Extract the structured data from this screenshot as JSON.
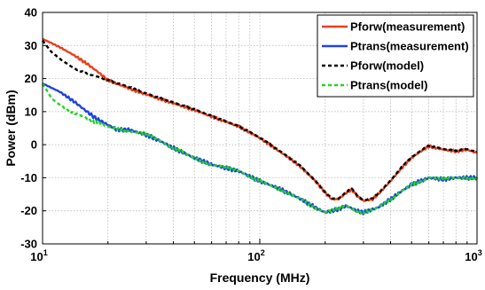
{
  "chart_data": {
    "type": "line",
    "xscale": "log",
    "xlim": [
      10,
      1000
    ],
    "ylim": [
      -30,
      40
    ],
    "grid": true,
    "legend_position": "top-right",
    "xlabel": "Frequency (MHz)",
    "ylabel": "Power (dBm)",
    "x_ticks": [
      {
        "value": 10,
        "base": "10",
        "exp": "1"
      },
      {
        "value": 100,
        "base": "10",
        "exp": "2"
      },
      {
        "value": 1000,
        "base": "10",
        "exp": "3"
      }
    ],
    "y_ticks": [
      -30,
      -20,
      -10,
      0,
      10,
      20,
      30,
      40
    ],
    "series": [
      {
        "name": "Pforw(measurement)",
        "color": "#e8401c",
        "dash": "solid",
        "noise": 0.4,
        "x": [
          10,
          12,
          14,
          16,
          18,
          20,
          25,
          30,
          40,
          50,
          60,
          80,
          100,
          120,
          150,
          180,
          200,
          215,
          230,
          250,
          265,
          280,
          300,
          330,
          350,
          400,
          450,
          500,
          550,
          600,
          650,
          700,
          800,
          900,
          1000
        ],
        "y": [
          32,
          29.5,
          27,
          24.5,
          22,
          19.5,
          17,
          15.2,
          12.5,
          10.5,
          8.5,
          5.5,
          2,
          -1.5,
          -6,
          -11,
          -14.5,
          -16.5,
          -16.5,
          -14.5,
          -13.5,
          -15.5,
          -17,
          -16.5,
          -15,
          -11,
          -7,
          -4,
          -2,
          -0.5,
          -1,
          -1.5,
          -2,
          -1.5,
          -2.5
        ]
      },
      {
        "name": "Ptrans(measurement)",
        "color": "#1f43e0",
        "dash": "solid",
        "noise": 0.6,
        "x": [
          10,
          12,
          14,
          16,
          18,
          20,
          22,
          25,
          30,
          35,
          40,
          50,
          60,
          80,
          100,
          120,
          150,
          180,
          200,
          230,
          250,
          280,
          300,
          350,
          400,
          450,
          500,
          550,
          600,
          700,
          800,
          1000
        ],
        "y": [
          18.5,
          16,
          13,
          10,
          7.5,
          6,
          4.5,
          4.5,
          3,
          1,
          -1,
          -4,
          -6,
          -8,
          -11,
          -13,
          -16,
          -19,
          -20.5,
          -19.5,
          -18.5,
          -20,
          -20.5,
          -19,
          -16.5,
          -14,
          -12,
          -11,
          -10,
          -10.5,
          -10,
          -10
        ]
      },
      {
        "name": "Pforw(model)",
        "color": "#000000",
        "dash": "4 3",
        "noise": 0.2,
        "x": [
          10,
          11,
          12,
          14,
          16,
          18,
          20,
          25,
          30,
          40,
          50,
          60,
          80,
          100,
          120,
          150,
          180,
          200,
          215,
          230,
          250,
          265,
          280,
          300,
          330,
          350,
          400,
          450,
          500,
          550,
          600,
          650,
          700,
          800,
          900,
          1000
        ],
        "y": [
          31.5,
          28,
          26,
          23,
          21.5,
          20.5,
          19.5,
          17.5,
          15.5,
          12.8,
          10.7,
          8.7,
          5.6,
          2.2,
          -1.3,
          -5.8,
          -10.8,
          -14.3,
          -16.3,
          -16.3,
          -14.3,
          -13.3,
          -15.3,
          -16.8,
          -16.3,
          -14.8,
          -10.8,
          -6.8,
          -3.8,
          -1.8,
          -0.3,
          -0.8,
          -1.3,
          -1.8,
          -1.3,
          -2.3
        ]
      },
      {
        "name": "Ptrans(model)",
        "color": "#22d422",
        "dash": "4 3",
        "noise": 0.5,
        "x": [
          10,
          11,
          12,
          14,
          16,
          18,
          20,
          25,
          30,
          35,
          40,
          50,
          60,
          80,
          100,
          120,
          150,
          180,
          200,
          230,
          250,
          280,
          300,
          350,
          400,
          450,
          500,
          550,
          600,
          700,
          800,
          1000
        ],
        "y": [
          18.5,
          14,
          12,
          9.5,
          8,
          6.5,
          5.5,
          4.2,
          3,
          1,
          -1,
          -4,
          -6,
          -8,
          -11,
          -13,
          -16,
          -19,
          -20.5,
          -19.5,
          -18.5,
          -20,
          -20.5,
          -19,
          -16.5,
          -14,
          -12,
          -11,
          -10,
          -10.5,
          -10,
          -10
        ]
      }
    ]
  }
}
